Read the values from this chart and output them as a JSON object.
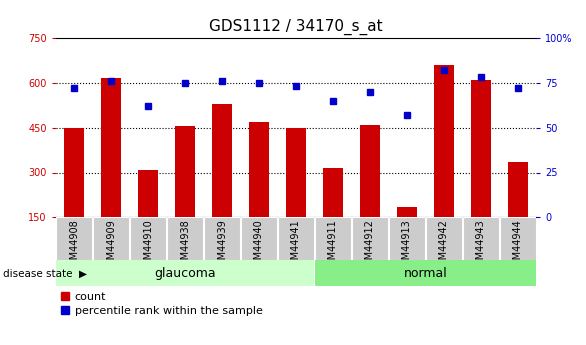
{
  "title": "GDS1112 / 34170_s_at",
  "samples": [
    "GSM44908",
    "GSM44909",
    "GSM44910",
    "GSM44938",
    "GSM44939",
    "GSM44940",
    "GSM44941",
    "GSM44911",
    "GSM44912",
    "GSM44913",
    "GSM44942",
    "GSM44943",
    "GSM44944"
  ],
  "groups": [
    "glaucoma",
    "glaucoma",
    "glaucoma",
    "glaucoma",
    "glaucoma",
    "glaucoma",
    "glaucoma",
    "normal",
    "normal",
    "normal",
    "normal",
    "normal",
    "normal"
  ],
  "counts": [
    450,
    615,
    310,
    455,
    530,
    470,
    450,
    315,
    460,
    185,
    660,
    610,
    335
  ],
  "percentiles": [
    72,
    76,
    62,
    75,
    76,
    75,
    73,
    65,
    70,
    57,
    82,
    78,
    72
  ],
  "ylim_left": [
    150,
    750
  ],
  "ylim_right": [
    0,
    100
  ],
  "yticks_left": [
    150,
    300,
    450,
    600,
    750
  ],
  "yticks_right": [
    0,
    25,
    50,
    75,
    100
  ],
  "ytick_right_labels": [
    "0",
    "25",
    "50",
    "75",
    "100%"
  ],
  "bar_color": "#cc0000",
  "dot_color": "#0000cc",
  "glaucoma_color": "#ccffcc",
  "normal_color": "#88ee88",
  "label_bg_color": "#cccccc",
  "axis_left_color": "#cc0000",
  "axis_right_color": "#0000cc",
  "grid_dotted_vals": [
    300,
    450,
    600
  ],
  "group_label_fontsize": 9,
  "tick_label_fontsize": 7,
  "title_fontsize": 11,
  "legend_fontsize": 8,
  "disease_state_label": "disease state",
  "legend_count": "count",
  "legend_percentile": "percentile rank within the sample",
  "bar_width": 0.55
}
